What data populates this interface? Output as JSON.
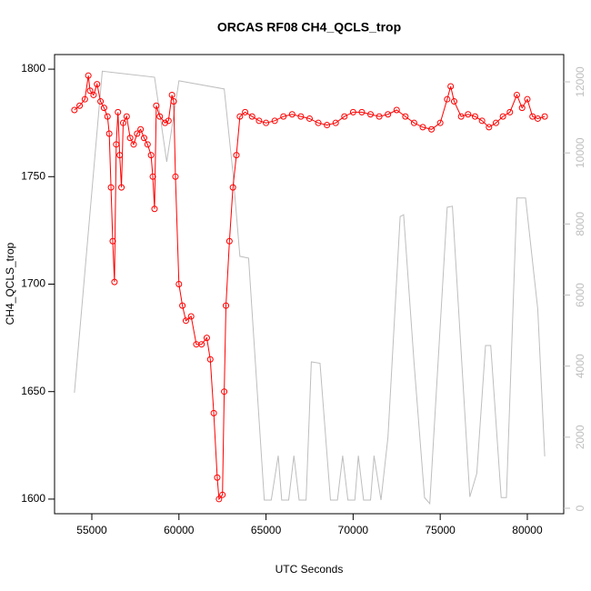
{
  "chart_data": {
    "type": "line",
    "title": "ORCAS RF08 CH4_QCLS_trop",
    "xlabel": "UTC Seconds",
    "ylabel": "CH4_QCLS_trop",
    "xlim": [
      52860,
      82090
    ],
    "ylim": [
      1593.2,
      1806.8
    ],
    "y2lim": [
      -154,
      12768
    ],
    "xticks": [
      55000,
      60000,
      65000,
      70000,
      75000,
      80000
    ],
    "yticks": [
      1600,
      1650,
      1700,
      1750,
      1800
    ],
    "y2ticks": [
      0,
      2000,
      4000,
      6000,
      8000,
      10000,
      12000
    ],
    "series": [
      {
        "color": "#bebebe",
        "axis": "y2",
        "markers": false,
        "x": [
          54000,
          55600,
          58600,
          59300,
          60000,
          62600,
          63100,
          63500,
          64000,
          64900,
          65300,
          65700,
          65900,
          66300,
          66600,
          66900,
          67300,
          67600,
          68100,
          68700,
          69100,
          69400,
          69700,
          70100,
          70300,
          70600,
          71000,
          71200,
          71600,
          72000,
          72700,
          72900,
          73500,
          74100,
          74400,
          75400,
          75700,
          76700,
          77100,
          77600,
          77900,
          78500,
          78800,
          79400,
          79900,
          80600,
          81000
        ],
        "values": [
          3250,
          12300,
          12130,
          9750,
          12030,
          11800,
          9440,
          7090,
          7040,
          230,
          230,
          1480,
          230,
          230,
          1480,
          230,
          230,
          4120,
          4080,
          230,
          230,
          1480,
          230,
          230,
          1480,
          230,
          230,
          1480,
          230,
          2000,
          8210,
          8260,
          4080,
          300,
          130,
          8470,
          8500,
          320,
          980,
          4580,
          4580,
          300,
          300,
          8730,
          8730,
          5600,
          1460
        ]
      },
      {
        "color": "#ff0000",
        "markers": true,
        "x": [
          54000,
          54300,
          54600,
          54800,
          54900,
          55100,
          55300,
          55500,
          55700,
          55900,
          56000,
          56100,
          56200,
          56300,
          56400,
          56500,
          56600,
          56700,
          56800,
          57000,
          57200,
          57400,
          57600,
          57800,
          58000,
          58200,
          58400,
          58500,
          58600,
          58700,
          58900,
          59200,
          59400,
          59600,
          59700,
          59800,
          60000,
          60200,
          60400,
          60700,
          61000,
          61300,
          61600,
          61800,
          62000,
          62200,
          62300,
          62500,
          62600,
          62700,
          62900,
          63100,
          63300,
          63500,
          63800,
          64200,
          64600,
          65000,
          65500,
          66000,
          66500,
          67000,
          67500,
          68000,
          68500,
          69000,
          69500,
          70000,
          70500,
          71000,
          71500,
          72000,
          72500,
          73000,
          73500,
          74000,
          74500,
          75000,
          75400,
          75600,
          75800,
          76200,
          76600,
          77000,
          77400,
          77800,
          78200,
          78600,
          79000,
          79400,
          79700,
          80000,
          80300,
          80600,
          81000
        ],
        "values": [
          1781,
          1783,
          1786,
          1797,
          1790,
          1788,
          1793,
          1785,
          1782,
          1778,
          1770,
          1745,
          1720,
          1701,
          1765,
          1780,
          1760,
          1745,
          1775,
          1778,
          1768,
          1765,
          1770,
          1772,
          1768,
          1765,
          1760,
          1750,
          1735,
          1783,
          1778,
          1775,
          1776,
          1788,
          1785,
          1750,
          1700,
          1690,
          1683,
          1685,
          1672,
          1672,
          1675,
          1665,
          1640,
          1610,
          1600,
          1602,
          1650,
          1690,
          1720,
          1745,
          1760,
          1778,
          1780,
          1778,
          1776,
          1775,
          1776,
          1778,
          1779,
          1778,
          1777,
          1775,
          1774,
          1775,
          1778,
          1780,
          1780,
          1779,
          1778,
          1779,
          1781,
          1778,
          1775,
          1773,
          1772,
          1775,
          1786,
          1792,
          1785,
          1778,
          1779,
          1778,
          1776,
          1773,
          1775,
          1778,
          1780,
          1788,
          1782,
          1786,
          1778,
          1777,
          1778
        ]
      }
    ]
  }
}
